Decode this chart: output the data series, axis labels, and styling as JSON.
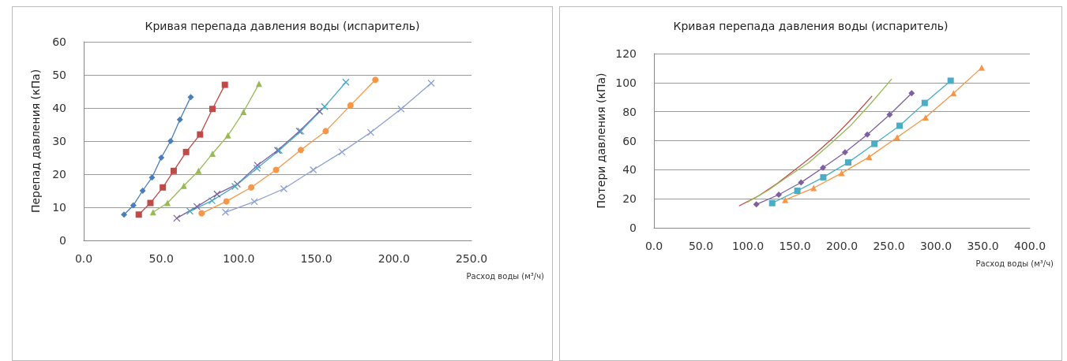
{
  "chart_data": [
    {
      "type": "line",
      "title": "Кривая перепада давления воды (испаритель)",
      "xlabel": "Расход воды (м³/ч)",
      "ylabel": "Перепад давления (кПа)",
      "xlim": [
        0,
        250
      ],
      "xticks": [
        {
          "value": 0,
          "label": "0.0"
        },
        {
          "value": 50,
          "label": "50.0"
        },
        {
          "value": 100,
          "label": "100.0"
        },
        {
          "value": 150,
          "label": "150.0"
        },
        {
          "value": 200,
          "label": "200.0"
        },
        {
          "value": 250,
          "label": "250.0"
        }
      ],
      "ylim": [
        0,
        60
      ],
      "yticks": [
        0,
        10,
        20,
        30,
        40,
        50,
        60
      ],
      "grid": "y",
      "line_style": "solid",
      "series": [
        {
          "color": "#4a7ebb",
          "marker": "diamond",
          "x": [
            26,
            32,
            38,
            44,
            50,
            56,
            62,
            69
          ],
          "values": [
            7.8,
            10.6,
            15,
            19,
            25,
            30,
            36.5,
            43.3
          ]
        },
        {
          "color": "#be4b48",
          "marker": "square",
          "x": [
            35.5,
            43,
            51,
            58,
            66,
            75,
            83,
            91
          ],
          "values": [
            7.8,
            11.3,
            16,
            21,
            26.7,
            32,
            39.7,
            47
          ]
        },
        {
          "color": "#98b954",
          "marker": "triangle",
          "x": [
            44.7,
            54,
            64.5,
            74,
            83,
            93,
            103,
            113
          ],
          "values": [
            8.5,
            11.3,
            16.5,
            21,
            26.2,
            31.7,
            38.8,
            47.3
          ]
        },
        {
          "color": "#7d60a0",
          "marker": "cross",
          "x": [
            60,
            73,
            86,
            99,
            112,
            125,
            139,
            152
          ],
          "values": [
            6.7,
            10.2,
            14,
            17,
            22.7,
            27.2,
            33,
            39
          ]
        },
        {
          "color": "#46aac5",
          "marker": "cross",
          "x": [
            68.5,
            82.7,
            97.5,
            111.7,
            126,
            140,
            155.3,
            169
          ],
          "values": [
            8.8,
            12,
            16.3,
            21.8,
            27.2,
            33,
            40.4,
            47.8
          ]
        },
        {
          "color": "#f79646",
          "marker": "circle",
          "x": [
            76,
            92,
            108,
            124,
            140,
            156,
            172,
            188
          ],
          "values": [
            8.2,
            11.8,
            16,
            21.3,
            27.3,
            33,
            40.8,
            48.5
          ]
        },
        {
          "color": "#8ca2d0",
          "marker": "cross",
          "x": [
            91.4,
            110,
            129,
            148,
            166.5,
            185,
            204.6,
            224
          ],
          "values": [
            8.5,
            11.7,
            15.6,
            21.3,
            26.7,
            32.6,
            39.7,
            47.5
          ]
        }
      ]
    },
    {
      "type": "line",
      "title": "Кривая перепада давления воды (испаритель)",
      "xlabel": "Расход воды (м³/ч)",
      "ylabel": "Потери давления (кПа)",
      "xlim": [
        0,
        400
      ],
      "xticks": [
        {
          "value": 0,
          "label": "0.0"
        },
        {
          "value": 50,
          "label": "50.0"
        },
        {
          "value": 100,
          "label": "100.0"
        },
        {
          "value": 150,
          "label": "150.0"
        },
        {
          "value": 200,
          "label": "200.0"
        },
        {
          "value": 250,
          "label": "250.0"
        },
        {
          "value": 300,
          "label": "300.0"
        },
        {
          "value": 350,
          "label": "350.0"
        },
        {
          "value": 400,
          "label": "400.0"
        }
      ],
      "ylim": [
        0,
        120
      ],
      "yticks": [
        0,
        20,
        40,
        60,
        80,
        100,
        120
      ],
      "grid": "y",
      "line_style": "solid",
      "series": [
        {
          "color": "#be4b48",
          "marker": "none",
          "x": [
            91,
            111.3,
            131.5,
            151,
            171,
            191.4,
            211.7,
            231.8
          ],
          "values": [
            15.2,
            22,
            30.7,
            40.4,
            50.6,
            62.4,
            76,
            90.6
          ]
        },
        {
          "color": "#98b954",
          "marker": "none",
          "x": [
            99.3,
            120.8,
            142.8,
            164.6,
            186.6,
            208.6,
            230.9,
            252.7
          ],
          "values": [
            17.6,
            25.5,
            35.4,
            44.8,
            57.2,
            70,
            85.8,
            102.3
          ]
        },
        {
          "color": "#7d60a0",
          "marker": "diamond",
          "x": [
            109,
            132.8,
            156.5,
            179.9,
            203.3,
            227,
            250.8,
            274.2
          ],
          "values": [
            16.1,
            22.8,
            31.2,
            41.4,
            52,
            64.2,
            77.9,
            92.7
          ]
        },
        {
          "color": "#4bacc6",
          "marker": "square",
          "x": [
            125.8,
            152.6,
            180.2,
            206.7,
            234.6,
            261.4,
            288.1,
            315.7
          ],
          "values": [
            17,
            25.5,
            34.8,
            45,
            57.8,
            70.3,
            86,
            101.3
          ]
        },
        {
          "color": "#f79646",
          "marker": "triangle",
          "x": [
            139.7,
            169.9,
            199.7,
            229,
            258.8,
            289,
            318.8,
            348.7
          ],
          "values": [
            19.2,
            27.4,
            37.7,
            48.8,
            62.3,
            76,
            92.7,
            110.3
          ]
        }
      ]
    }
  ]
}
